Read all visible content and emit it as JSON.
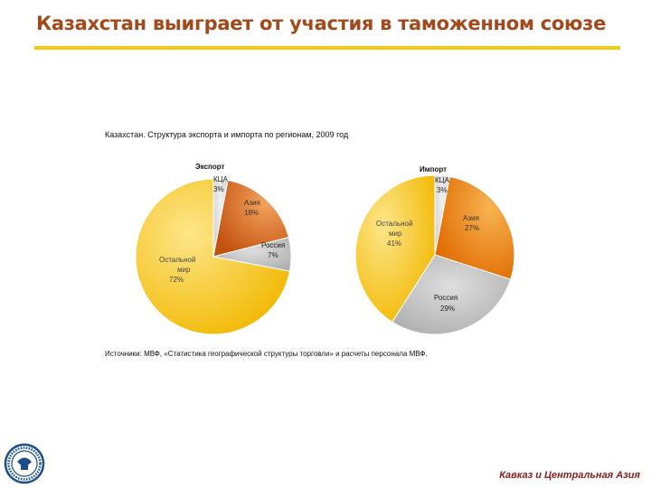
{
  "title": "Казахстан выиграет от участия в таможенном союзе",
  "chart_caption": "Казахстан. Структура экспорта и импорта по регионам, 2009 год",
  "source": "Источники: МВФ, «Статистика географической структуры торговли» и расчеты персонала МВФ.",
  "footer": "Кавказ и Центральная Азия",
  "colors": {
    "title": "#a24a1c",
    "title_rule": "#f2cc0c",
    "footer": "#8b1c1c"
  },
  "chart_data": [
    {
      "type": "pie",
      "title": "Экспорт",
      "slices": [
        {
          "label": "КЦА",
          "value": 3,
          "display": "3%",
          "color": "#d9d9d9"
        },
        {
          "label": "Азия",
          "value": 18,
          "display": "18%",
          "color": "#d8661c"
        },
        {
          "label": "Россия",
          "value": 7,
          "display": "7%",
          "color": "#b4b4b4"
        },
        {
          "label": "Остальной мир",
          "value": 72,
          "display": "72%",
          "color": "#f2c200"
        }
      ]
    },
    {
      "type": "pie",
      "title": "Импорт",
      "slices": [
        {
          "label": "КЦА",
          "value": 3,
          "display": "3%",
          "color": "#d9d9d9"
        },
        {
          "label": "Азия",
          "value": 27,
          "display": "27%",
          "color": "#e8780e"
        },
        {
          "label": "Россия",
          "value": 29,
          "display": "29%",
          "color": "#b4b4b4"
        },
        {
          "label": "Остальной мир",
          "value": 41,
          "display": "41%",
          "color": "#f2c200"
        }
      ]
    }
  ]
}
